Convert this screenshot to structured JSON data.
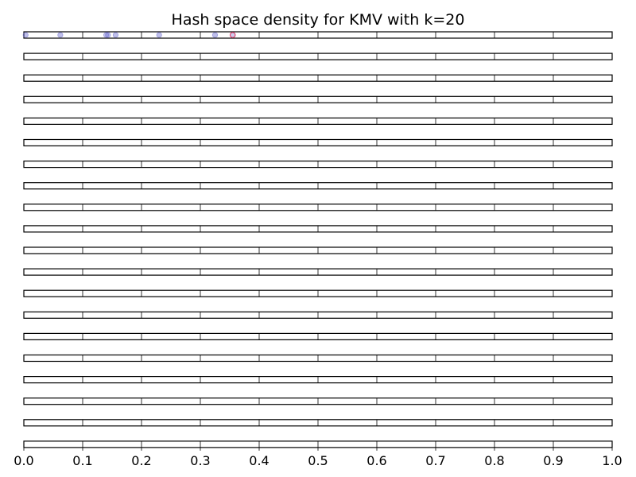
{
  "chart_data": {
    "type": "scatter",
    "title": "Hash space density for KMV with k=20",
    "xlabel": "",
    "ylabel": "",
    "xlim": [
      0.0,
      1.0
    ],
    "x_ticks": [
      "0.0",
      "0.1",
      "0.2",
      "0.3",
      "0.4",
      "0.5",
      "0.6",
      "0.7",
      "0.8",
      "0.9",
      "1.0"
    ],
    "grid": true,
    "strip_count": 20,
    "colors": {
      "point": "#7070d0",
      "kth_point": "#e0406a",
      "strip": "#000000"
    },
    "series": [
      {
        "strip": 0,
        "points": [
          0.003,
          0.062,
          0.14,
          0.143,
          0.156,
          0.23,
          0.325
        ],
        "kth_value": 0.355
      }
    ]
  }
}
